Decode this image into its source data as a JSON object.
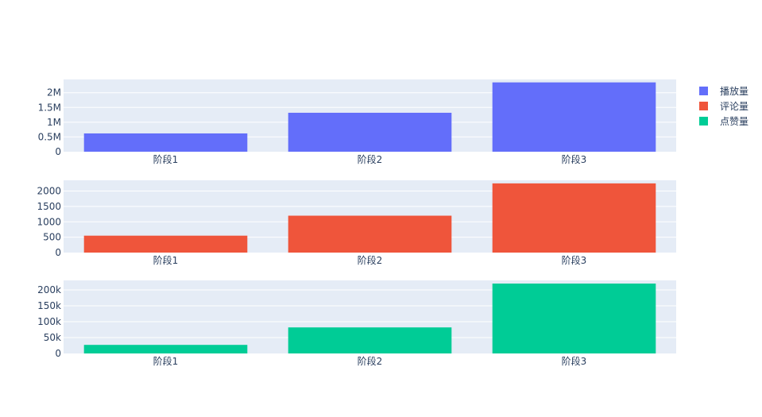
{
  "chart_data": [
    {
      "type": "bar",
      "categories": [
        "阶段1",
        "阶段2",
        "阶段3"
      ],
      "series": [
        {
          "name": "播放量",
          "values": [
            620000,
            1320000,
            2350000
          ]
        }
      ],
      "color": "#636efa",
      "ylim": [
        0,
        2450000
      ],
      "yticks": [
        0,
        500000,
        1000000,
        1500000,
        2000000
      ],
      "ytick_labels": [
        "0",
        "0.5M",
        "1M",
        "1.5M",
        "2M"
      ],
      "grid": true
    },
    {
      "type": "bar",
      "categories": [
        "阶段1",
        "阶段2",
        "阶段3"
      ],
      "series": [
        {
          "name": "评论量",
          "values": [
            550,
            1200,
            2250
          ]
        }
      ],
      "color": "#ef553b",
      "ylim": [
        0,
        2350
      ],
      "yticks": [
        0,
        500,
        1000,
        1500,
        2000
      ],
      "ytick_labels": [
        "0",
        "500",
        "1000",
        "1500",
        "2000"
      ],
      "grid": true
    },
    {
      "type": "bar",
      "categories": [
        "阶段1",
        "阶段2",
        "阶段3"
      ],
      "series": [
        {
          "name": "点赞量",
          "values": [
            27000,
            82000,
            220000
          ]
        }
      ],
      "color": "#00cc96",
      "ylim": [
        0,
        230000
      ],
      "yticks": [
        0,
        50000,
        100000,
        150000,
        200000
      ],
      "ytick_labels": [
        "0",
        "50k",
        "100k",
        "150k",
        "200k"
      ],
      "grid": true
    }
  ],
  "legend": {
    "placement": "top-right",
    "items": [
      {
        "label": "播放量",
        "color": "#636efa"
      },
      {
        "label": "评论量",
        "color": "#ef553b"
      },
      {
        "label": "点赞量",
        "color": "#00cc96"
      }
    ]
  }
}
